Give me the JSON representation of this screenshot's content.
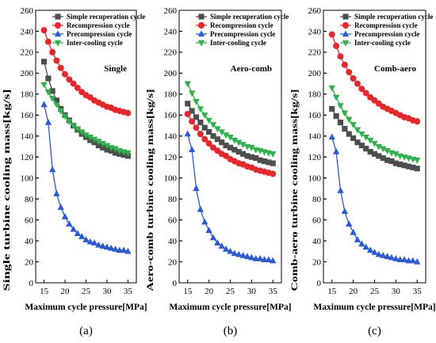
{
  "chart_data": [
    {
      "type": "line",
      "panel_label": "(a)",
      "annotation": "Single",
      "xlabel": "Maximum cycle pressure[MPa]",
      "ylabel": "Single turbine cooling mass[kg/s]",
      "xlim": [
        13,
        37
      ],
      "ylim": [
        0,
        260
      ],
      "xticks": [
        15,
        20,
        25,
        30,
        35
      ],
      "yticks": [
        0,
        20,
        40,
        60,
        80,
        100,
        120,
        140,
        160,
        180,
        200,
        220,
        240,
        260
      ],
      "legend_position": "top-right",
      "x": [
        15,
        16,
        17,
        18,
        19,
        20,
        21,
        22,
        23,
        24,
        25,
        26,
        27,
        28,
        29,
        30,
        31,
        32,
        33,
        34,
        35
      ],
      "series": [
        {
          "name": "Simple recuperation cycle",
          "marker": "square",
          "color": "#4d4d4d",
          "values": [
            211,
            195,
            183,
            174,
            166,
            160,
            155,
            150,
            146,
            142,
            139,
            136,
            134,
            131,
            129,
            127,
            126,
            124,
            123,
            122,
            121
          ]
        },
        {
          "name": "Recompression cycle",
          "marker": "circle",
          "color": "#e8272a",
          "values": [
            241,
            230,
            220,
            212,
            205,
            199,
            194,
            190,
            186,
            182,
            179,
            177,
            174,
            172,
            170,
            168,
            167,
            165,
            164,
            163,
            162
          ]
        },
        {
          "name": "Precompression cycle",
          "marker": "triangle-up",
          "color": "#2a5bd7",
          "values": [
            170,
            153,
            108,
            85,
            72,
            63,
            56,
            51,
            47,
            44,
            41,
            39,
            38,
            36,
            35,
            34,
            33,
            32,
            31,
            31,
            30
          ]
        },
        {
          "name": "Inter-cooling cycle",
          "marker": "triangle-down",
          "color": "#2cb34a",
          "values": [
            189,
            182,
            176,
            170,
            164,
            159,
            154,
            150,
            147,
            144,
            141,
            139,
            137,
            135,
            133,
            131,
            129,
            128,
            126,
            125,
            124
          ]
        }
      ]
    },
    {
      "type": "line",
      "panel_label": "(b)",
      "annotation": "Aero-comb",
      "xlabel": "Maximum cycle pressure[MPa]",
      "ylabel": "Aero-comb turbine cooling mass[kg/s]",
      "xlim": [
        13,
        37
      ],
      "ylim": [
        0,
        260
      ],
      "xticks": [
        15,
        20,
        25,
        30,
        35
      ],
      "yticks": [
        0,
        20,
        40,
        60,
        80,
        100,
        120,
        140,
        160,
        180,
        200,
        220,
        240,
        260
      ],
      "legend_position": "top-right",
      "x": [
        15,
        16,
        17,
        18,
        19,
        20,
        21,
        22,
        23,
        24,
        25,
        26,
        27,
        28,
        29,
        30,
        31,
        32,
        33,
        34,
        35
      ],
      "series": [
        {
          "name": "Simple recuperation cycle",
          "marker": "square",
          "color": "#4d4d4d",
          "values": [
            171,
            164,
            158,
            153,
            148,
            144,
            140,
            137,
            134,
            131,
            129,
            127,
            125,
            123,
            121,
            120,
            119,
            117,
            116,
            115,
            114
          ]
        },
        {
          "name": "Recompression cycle",
          "marker": "circle",
          "color": "#e8272a",
          "values": [
            161,
            154,
            148,
            142,
            137,
            133,
            129,
            126,
            123,
            121,
            118,
            116,
            114,
            113,
            111,
            110,
            108,
            107,
            106,
            105,
            104
          ]
        },
        {
          "name": "Precompression cycle",
          "marker": "triangle-up",
          "color": "#2a5bd7",
          "values": [
            142,
            127,
            90,
            70,
            58,
            50,
            43,
            38,
            35,
            32,
            30,
            28,
            27,
            26,
            25,
            24,
            23,
            23,
            22,
            22,
            21
          ]
        },
        {
          "name": "Inter-cooling cycle",
          "marker": "triangle-down",
          "color": "#2cb34a",
          "values": [
            190,
            181,
            173,
            166,
            160,
            155,
            151,
            147,
            144,
            141,
            139,
            136,
            134,
            132,
            130,
            129,
            127,
            126,
            125,
            124,
            123
          ]
        }
      ]
    },
    {
      "type": "line",
      "panel_label": "(c)",
      "annotation": "Comb-aero",
      "xlabel": "Maximum cycle pressure[MPa]",
      "ylabel": "Comb-aero turbine cooling mass[kg/s]",
      "xlim": [
        13,
        37
      ],
      "ylim": [
        0,
        260
      ],
      "xticks": [
        15,
        20,
        25,
        30,
        35
      ],
      "yticks": [
        0,
        20,
        40,
        60,
        80,
        100,
        120,
        140,
        160,
        180,
        200,
        220,
        240,
        260
      ],
      "legend_position": "top-right",
      "x": [
        15,
        16,
        17,
        18,
        19,
        20,
        21,
        22,
        23,
        24,
        25,
        26,
        27,
        28,
        29,
        30,
        31,
        32,
        33,
        34,
        35
      ],
      "series": [
        {
          "name": "Simple recuperation cycle",
          "marker": "square",
          "color": "#4d4d4d",
          "values": [
            166,
            159,
            153,
            147,
            142,
            138,
            134,
            131,
            128,
            125,
            123,
            121,
            119,
            117,
            116,
            114,
            113,
            112,
            111,
            110,
            109
          ]
        },
        {
          "name": "Recompression cycle",
          "marker": "circle",
          "color": "#e8272a",
          "values": [
            237,
            226,
            216,
            208,
            201,
            195,
            190,
            185,
            181,
            177,
            174,
            171,
            168,
            166,
            164,
            162,
            160,
            158,
            157,
            155,
            154
          ]
        },
        {
          "name": "Precompression cycle",
          "marker": "triangle-up",
          "color": "#2a5bd7",
          "values": [
            139,
            125,
            88,
            68,
            56,
            48,
            41,
            37,
            34,
            31,
            29,
            27,
            26,
            25,
            24,
            23,
            22,
            22,
            21,
            21,
            20
          ]
        },
        {
          "name": "Inter-cooling cycle",
          "marker": "triangle-down",
          "color": "#2cb34a",
          "values": [
            186,
            177,
            169,
            162,
            156,
            151,
            146,
            142,
            139,
            136,
            133,
            130,
            128,
            126,
            124,
            123,
            121,
            120,
            119,
            118,
            117
          ]
        }
      ]
    }
  ]
}
